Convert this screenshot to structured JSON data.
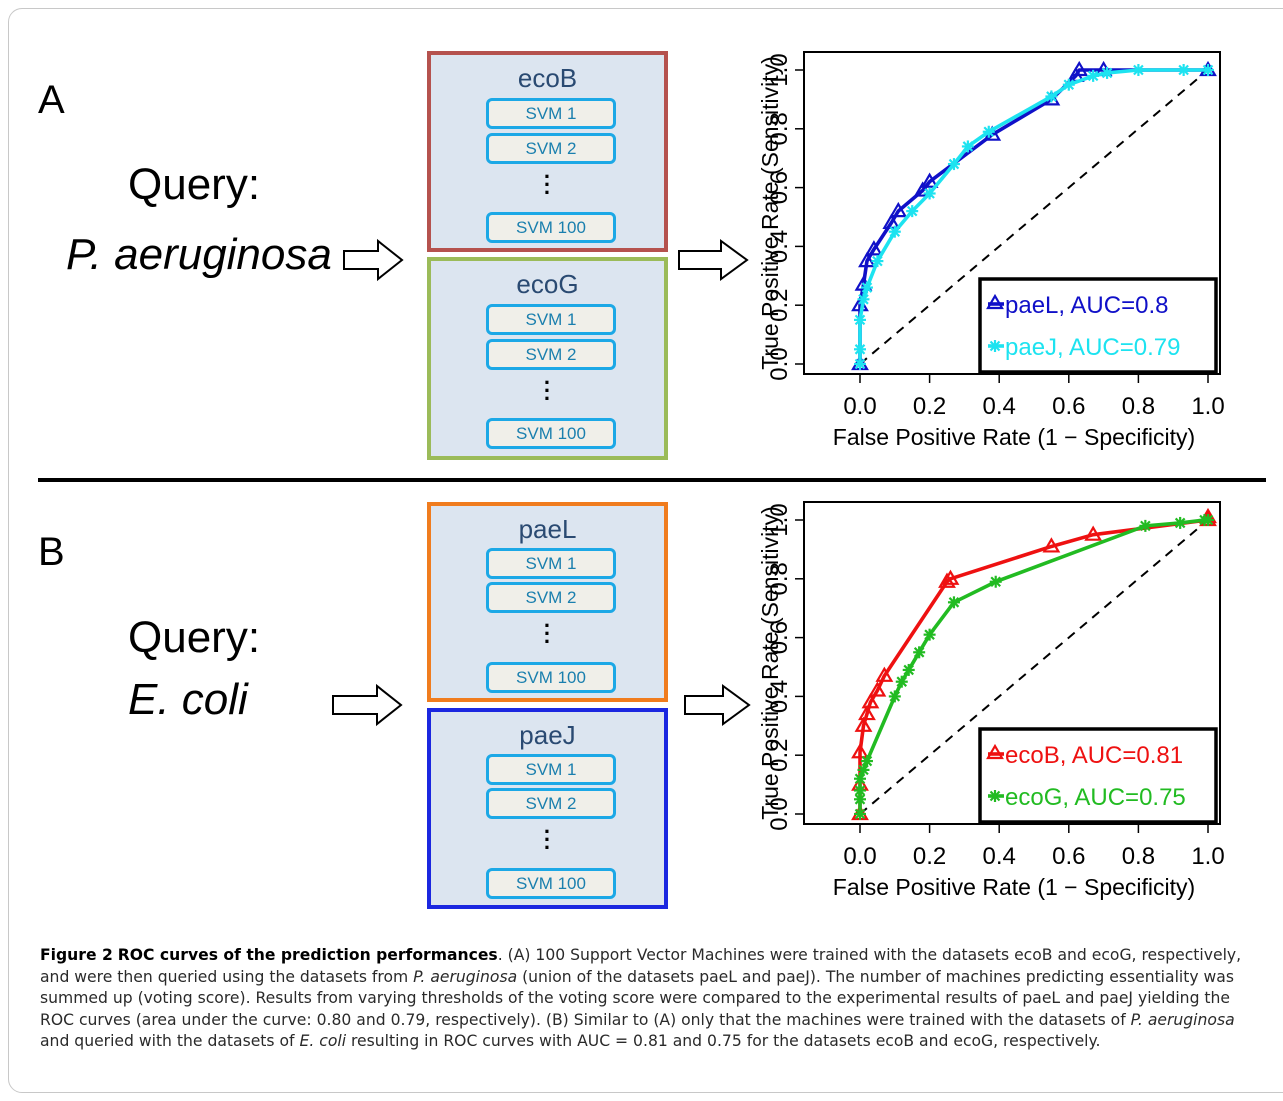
{
  "panel_a": {
    "letter": "A",
    "query_label": "Query:",
    "organism": "P. aeruginosa",
    "ensembles": [
      {
        "title": "ecoB",
        "border_color": "#b5524e",
        "svms": [
          "SVM 1",
          "SVM 2",
          "SVM 100"
        ]
      },
      {
        "title": "ecoG",
        "border_color": "#9bbb59",
        "svms": [
          "SVM 1",
          "SVM 2",
          "SVM 100"
        ]
      }
    ]
  },
  "panel_b": {
    "letter": "B",
    "query_label": "Query:",
    "organism": "E. coli",
    "ensembles": [
      {
        "title": "paeL",
        "border_color": "#f07c1e",
        "svms": [
          "SVM 1",
          "SVM 2",
          "SVM 100"
        ]
      },
      {
        "title": "paeJ",
        "border_color": "#1b27e0",
        "svms": [
          "SVM 1",
          "SVM 2",
          "SVM 100"
        ]
      }
    ]
  },
  "chart_data": [
    {
      "type": "line",
      "xlabel": "False Positive Rate (1 − Specificity)",
      "ylabel": "True Positive Rate (Sensitivity)",
      "xlim": [
        0,
        1
      ],
      "ylim": [
        0,
        1
      ],
      "xticks": [
        "0.0",
        "0.2",
        "0.4",
        "0.6",
        "0.8",
        "1.0"
      ],
      "yticks": [
        "0.0",
        "0.2",
        "0.4",
        "0.6",
        "0.8",
        "1.0"
      ],
      "diagonal_reference": true,
      "legend_position": "bottom-right",
      "series": [
        {
          "name": "paeL, AUC=0.8",
          "color": "#1010c8",
          "marker": "triangle",
          "x": [
            0.0,
            0.0,
            0.01,
            0.02,
            0.04,
            0.09,
            0.11,
            0.18,
            0.2,
            0.38,
            0.55,
            0.62,
            0.63,
            0.7,
            1.0
          ],
          "y": [
            0.0,
            0.2,
            0.27,
            0.35,
            0.39,
            0.48,
            0.52,
            0.59,
            0.62,
            0.78,
            0.9,
            0.98,
            1.0,
            1.0,
            1.0
          ]
        },
        {
          "name": "paeJ, AUC=0.79",
          "color": "#1de3f0",
          "marker": "star",
          "x": [
            0.0,
            0.0,
            0.0,
            0.01,
            0.02,
            0.05,
            0.1,
            0.15,
            0.2,
            0.27,
            0.31,
            0.37,
            0.55,
            0.6,
            0.67,
            0.71,
            0.8,
            0.93,
            1.0
          ],
          "y": [
            0.0,
            0.05,
            0.15,
            0.22,
            0.26,
            0.35,
            0.45,
            0.52,
            0.58,
            0.68,
            0.74,
            0.79,
            0.91,
            0.95,
            0.98,
            0.99,
            1.0,
            1.0,
            1.0
          ]
        }
      ]
    },
    {
      "type": "line",
      "xlabel": "False Positive Rate (1 − Specificity)",
      "ylabel": "True Positive Rate (Sensitivity)",
      "xlim": [
        0,
        1
      ],
      "ylim": [
        0,
        1
      ],
      "xticks": [
        "0.0",
        "0.2",
        "0.4",
        "0.6",
        "0.8",
        "1.0"
      ],
      "yticks": [
        "0.0",
        "0.2",
        "0.4",
        "0.6",
        "0.8",
        "1.0"
      ],
      "diagonal_reference": true,
      "legend_position": "bottom-right",
      "series": [
        {
          "name": "ecoB, AUC=0.81",
          "color": "#ee1111",
          "marker": "triangle",
          "x": [
            0.0,
            0.0,
            0.0,
            0.01,
            0.02,
            0.03,
            0.05,
            0.07,
            0.25,
            0.26,
            0.55,
            0.67,
            1.0,
            1.0
          ],
          "y": [
            0.0,
            0.1,
            0.21,
            0.3,
            0.34,
            0.38,
            0.42,
            0.47,
            0.79,
            0.8,
            0.91,
            0.95,
            1.0,
            1.01
          ]
        },
        {
          "name": "ecoG, AUC=0.75",
          "color": "#22bb22",
          "marker": "star",
          "x": [
            0.0,
            0.0,
            0.0,
            0.0,
            0.01,
            0.02,
            0.1,
            0.12,
            0.14,
            0.17,
            0.2,
            0.27,
            0.39,
            0.82,
            0.92,
            0.99,
            1.0
          ],
          "y": [
            0.0,
            0.05,
            0.08,
            0.12,
            0.15,
            0.18,
            0.4,
            0.45,
            0.49,
            0.55,
            0.61,
            0.72,
            0.79,
            0.98,
            0.99,
            1.0,
            1.0
          ]
        }
      ]
    }
  ],
  "caption": {
    "label": "Figure 2",
    "title": "ROC curves of the prediction performances",
    "text_1": ". (A) 100 Support Vector Machines were trained with the datasets ecoB and ecoG, respectively, and were then queried using the datasets from ",
    "italic_1": "P. aeruginosa",
    "text_2": " (union of the datasets paeL and paeJ). The number of machines predicting essentiality was summed up (voting score). Results from varying thresholds of the voting score were compared to the experimental results of paeL and paeJ yielding the ROC curves (area under the curve: 0.80 and 0.79, respectively). (B) Similar to (A) only that the machines were trained with the datasets of ",
    "italic_2": "P. aeruginosa",
    "text_3": " and queried with the datasets of ",
    "italic_3": "E. coli",
    "text_4": " resulting in ROC curves with AUC = 0.81 and 0.75 for the datasets ecoB and ecoG, respectively."
  }
}
